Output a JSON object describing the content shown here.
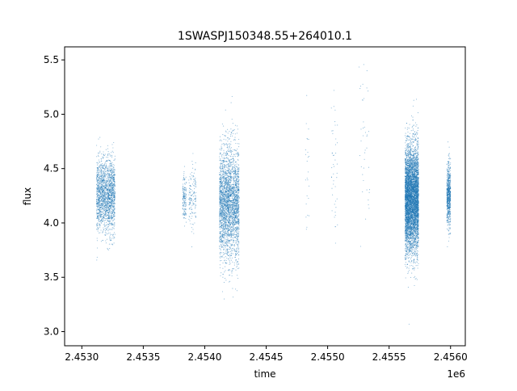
{
  "chart_data": {
    "type": "scatter",
    "title": "1SWASPJ150348.55+264010.1",
    "xlabel": "time",
    "ylabel": "flux",
    "x_offset_label": "1e6",
    "xlim": [
      2.45286,
      2.45612
    ],
    "ylim": [
      2.87,
      5.62
    ],
    "x_ticks": [
      2.453,
      2.4535,
      2.454,
      2.4545,
      2.455,
      2.4555,
      2.456
    ],
    "x_tick_labels": [
      "2.4530",
      "2.4535",
      "2.4540",
      "2.4545",
      "2.4550",
      "2.4555",
      "2.4560"
    ],
    "y_ticks": [
      3.0,
      3.5,
      4.0,
      4.5,
      5.0,
      5.5
    ],
    "y_tick_labels": [
      "3.0",
      "3.5",
      "4.0",
      "4.5",
      "5.0",
      "5.5"
    ],
    "grid": false,
    "legend": false,
    "point_color": "#1f77b4",
    "clusters": [
      {
        "x_start": 2.45312,
        "x_end": 2.45327,
        "median_flux": 4.25,
        "spread": 0.17,
        "approx_points": 1800
      },
      {
        "x_start": 2.45382,
        "x_end": 2.45385,
        "median_flux": 4.22,
        "spread": 0.12,
        "approx_points": 150
      },
      {
        "x_start": 2.45387,
        "x_end": 2.45393,
        "median_flux": 4.2,
        "spread": 0.14,
        "approx_points": 150
      },
      {
        "x_start": 2.45412,
        "x_end": 2.45428,
        "median_flux": 4.18,
        "spread": 0.26,
        "approx_points": 2800
      },
      {
        "x_start": 2.45482,
        "x_end": 2.45485,
        "median_flux": 4.5,
        "spread": 0.35,
        "approx_points": 25
      },
      {
        "x_start": 2.45503,
        "x_end": 2.45508,
        "median_flux": 4.45,
        "spread": 0.4,
        "approx_points": 45
      },
      {
        "x_start": 2.45525,
        "x_end": 2.45535,
        "median_flux": 4.6,
        "spread": 0.45,
        "approx_points": 40
      },
      {
        "x_start": 2.45563,
        "x_end": 2.45574,
        "median_flux": 4.22,
        "spread": 0.24,
        "approx_points": 5500
      },
      {
        "x_start": 2.45597,
        "x_end": 2.456,
        "median_flux": 4.25,
        "spread": 0.15,
        "approx_points": 700
      }
    ]
  }
}
